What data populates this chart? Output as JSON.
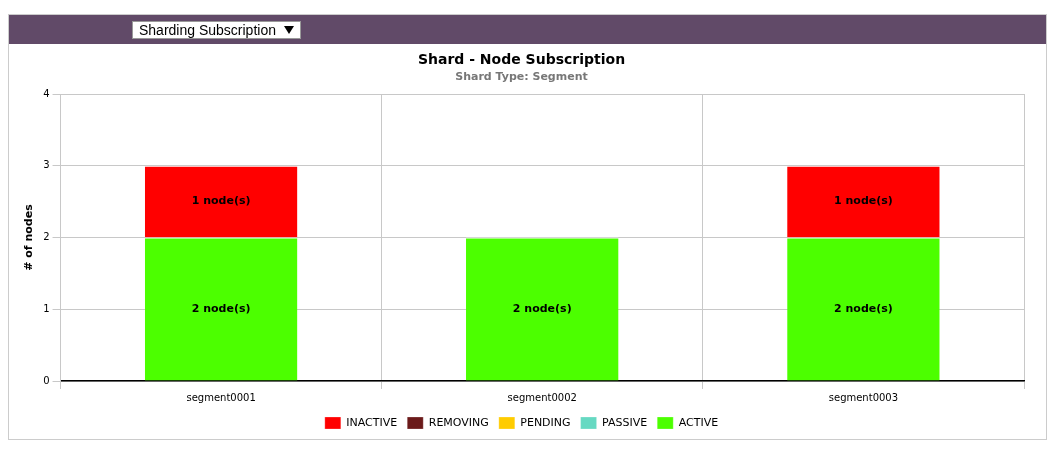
{
  "chart_data": {
    "type": "bar",
    "title": "Shard - Node Subscription",
    "subtitle": "Shard Type: Segment",
    "ylabel": "# of nodes",
    "annotations": [
      "Sharding Subscription"
    ],
    "categories": [
      "segment0001",
      "segment0002",
      "segment0003"
    ],
    "stacked": true,
    "ylim": [
      0,
      4
    ],
    "yticks": [
      0,
      1,
      2,
      3,
      4
    ],
    "grid": true,
    "legend": "bottom",
    "series": [
      {
        "name": "ACTIVE",
        "color": "#4cff00",
        "values": [
          2,
          2,
          2
        ],
        "value_labels": [
          "2 node(s)",
          "2 node(s)",
          "2 node(s)"
        ]
      },
      {
        "name": "PASSIVE",
        "color": "#66d9c2",
        "values": [
          0,
          0,
          0
        ],
        "value_labels": [
          null,
          null,
          null
        ]
      },
      {
        "name": "PENDING",
        "color": "#ffcc00",
        "values": [
          0,
          0,
          0
        ],
        "value_labels": [
          null,
          null,
          null
        ]
      },
      {
        "name": "REMOVING",
        "color": "#6b1a1a",
        "values": [
          0,
          0,
          0
        ],
        "value_labels": [
          null,
          null,
          null
        ]
      },
      {
        "name": "INACTIVE",
        "color": "#ff0000",
        "values": [
          1,
          0,
          1
        ],
        "value_labels": [
          "1 node(s)",
          null,
          "1 node(s)"
        ]
      }
    ]
  }
}
